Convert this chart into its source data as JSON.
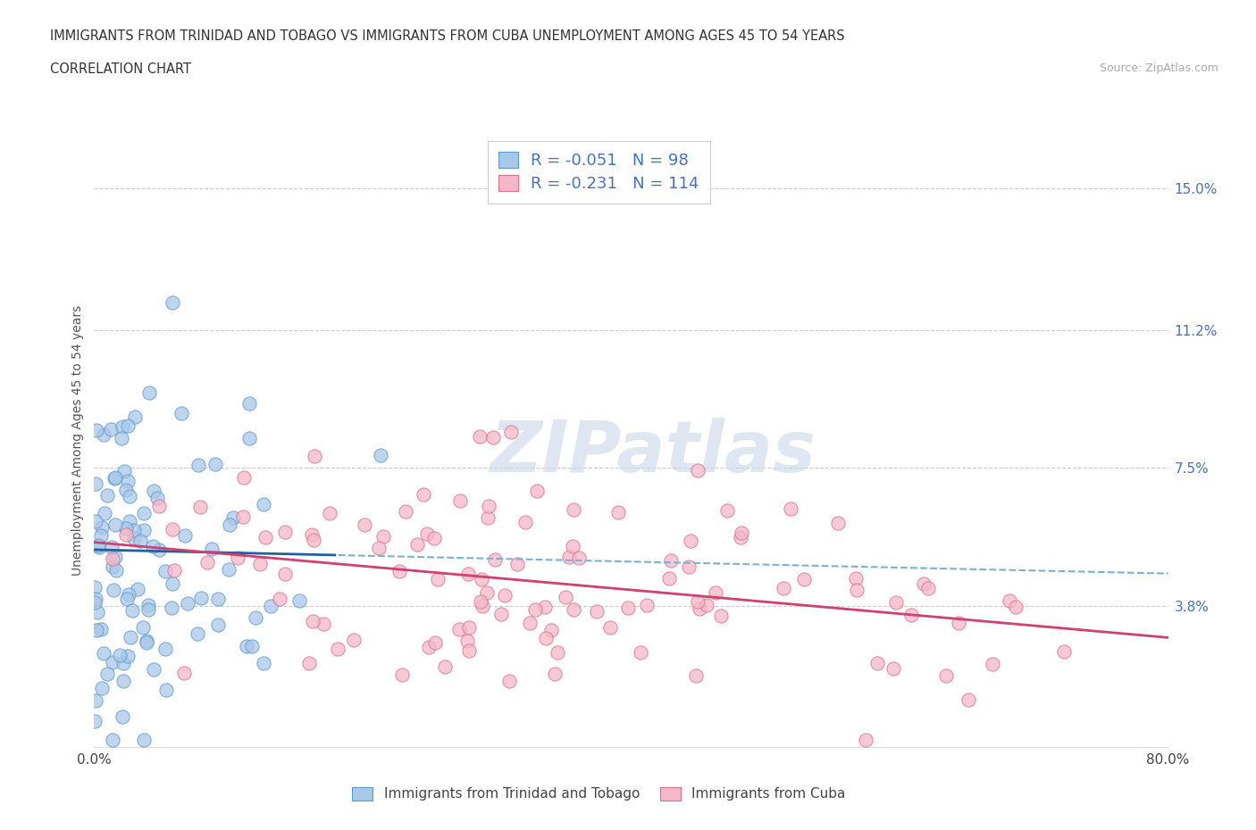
{
  "title_line1": "IMMIGRANTS FROM TRINIDAD AND TOBAGO VS IMMIGRANTS FROM CUBA UNEMPLOYMENT AMONG AGES 45 TO 54 YEARS",
  "title_line2": "CORRELATION CHART",
  "source_text": "Source: ZipAtlas.com",
  "ylabel": "Unemployment Among Ages 45 to 54 years",
  "xlim": [
    0.0,
    0.8
  ],
  "ylim": [
    0.0,
    0.165
  ],
  "right_ytick_labels": [
    "15.0%",
    "11.2%",
    "7.5%",
    "3.8%"
  ],
  "right_ytick_values": [
    0.15,
    0.112,
    0.075,
    0.038
  ],
  "series1_scatter_color": "#a8c8e8",
  "series1_edge_color": "#5b9bd5",
  "series2_scatter_color": "#f4b8c8",
  "series2_edge_color": "#e07090",
  "legend_R1": "-0.051",
  "legend_N1": "98",
  "legend_R2": "-0.231",
  "legend_N2": "114",
  "legend_label1": "Immigrants from Trinidad and Tobago",
  "legend_label2": "Immigrants from Cuba",
  "series1_slope": -0.008,
  "series1_intercept": 0.053,
  "series2_slope": -0.032,
  "series2_intercept": 0.055,
  "n1": 98,
  "n2": 114,
  "seed1": 12,
  "seed2": 77
}
